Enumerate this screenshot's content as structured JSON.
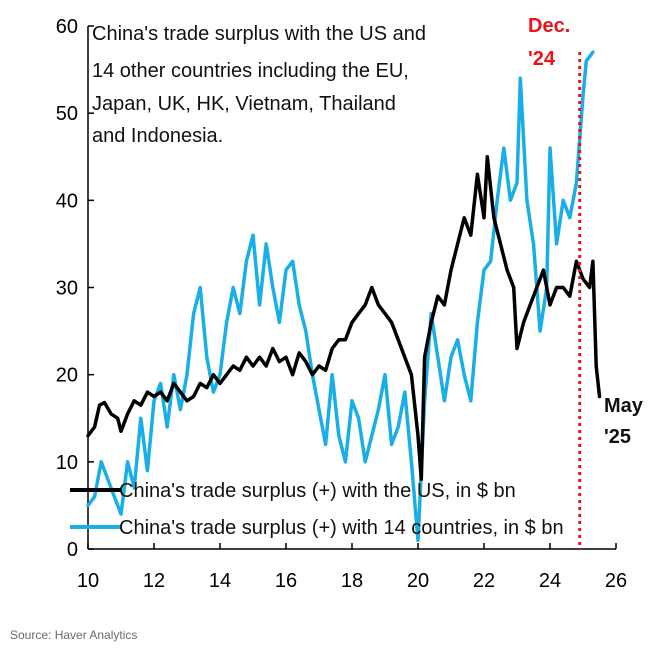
{
  "source": "Source: Haver Analytics",
  "chart_data": {
    "type": "line",
    "title_lines": [
      "China's trade surplus with the US and",
      "14  other countries including the EU,",
      "Japan, UK, HK, Vietnam, Thailand",
      "and Indonesia."
    ],
    "xlim": [
      10,
      26
    ],
    "ylim": [
      0,
      60
    ],
    "x_ticks": [
      10,
      12,
      14,
      16,
      18,
      20,
      22,
      24,
      26
    ],
    "y_ticks": [
      0,
      10,
      20,
      30,
      40,
      50,
      60
    ],
    "grid": false,
    "legend_position": "bottom-left",
    "series": [
      {
        "name": "China's trade surplus (+) with the US, in $ bn",
        "color": "#000000",
        "points": [
          [
            10.0,
            13
          ],
          [
            10.2,
            14
          ],
          [
            10.35,
            16.5
          ],
          [
            10.5,
            16.8
          ],
          [
            10.7,
            15.5
          ],
          [
            10.9,
            15
          ],
          [
            11.0,
            13.5
          ],
          [
            11.2,
            15.5
          ],
          [
            11.4,
            17
          ],
          [
            11.6,
            16.5
          ],
          [
            11.8,
            18
          ],
          [
            12.0,
            17.5
          ],
          [
            12.2,
            18
          ],
          [
            12.4,
            17
          ],
          [
            12.6,
            19
          ],
          [
            12.8,
            18
          ],
          [
            13.0,
            17
          ],
          [
            13.2,
            17.5
          ],
          [
            13.4,
            19
          ],
          [
            13.6,
            18.5
          ],
          [
            13.8,
            20
          ],
          [
            14.0,
            19
          ],
          [
            14.2,
            20
          ],
          [
            14.4,
            21
          ],
          [
            14.6,
            20.5
          ],
          [
            14.8,
            22
          ],
          [
            15.0,
            21
          ],
          [
            15.2,
            22
          ],
          [
            15.4,
            21
          ],
          [
            15.6,
            23
          ],
          [
            15.8,
            21.5
          ],
          [
            16.0,
            22
          ],
          [
            16.2,
            20
          ],
          [
            16.4,
            22.5
          ],
          [
            16.6,
            21.5
          ],
          [
            16.8,
            20
          ],
          [
            17.0,
            21
          ],
          [
            17.2,
            20.5
          ],
          [
            17.4,
            23
          ],
          [
            17.6,
            24
          ],
          [
            17.8,
            24
          ],
          [
            18.0,
            26
          ],
          [
            18.2,
            27
          ],
          [
            18.4,
            28
          ],
          [
            18.6,
            30
          ],
          [
            18.8,
            28
          ],
          [
            19.0,
            27
          ],
          [
            19.2,
            26
          ],
          [
            19.4,
            24
          ],
          [
            19.6,
            22
          ],
          [
            19.8,
            20
          ],
          [
            20.0,
            13
          ],
          [
            20.1,
            8
          ],
          [
            20.2,
            22
          ],
          [
            20.4,
            26
          ],
          [
            20.6,
            29
          ],
          [
            20.8,
            28
          ],
          [
            21.0,
            32
          ],
          [
            21.2,
            35
          ],
          [
            21.4,
            38
          ],
          [
            21.6,
            36
          ],
          [
            21.8,
            43
          ],
          [
            22.0,
            38
          ],
          [
            22.1,
            45
          ],
          [
            22.3,
            38
          ],
          [
            22.5,
            35
          ],
          [
            22.7,
            32
          ],
          [
            22.9,
            30
          ],
          [
            23.0,
            23
          ],
          [
            23.2,
            26
          ],
          [
            23.4,
            28
          ],
          [
            23.6,
            30
          ],
          [
            23.8,
            32
          ],
          [
            24.0,
            28
          ],
          [
            24.2,
            30
          ],
          [
            24.4,
            30
          ],
          [
            24.6,
            29
          ],
          [
            24.8,
            33
          ],
          [
            25.0,
            31
          ],
          [
            25.2,
            30
          ],
          [
            25.3,
            33
          ],
          [
            25.4,
            21
          ],
          [
            25.5,
            17.5
          ]
        ]
      },
      {
        "name": "China's trade surplus (+) with 14 countries, in $ bn",
        "color": "#1aaee6",
        "points": [
          [
            10.0,
            5
          ],
          [
            10.2,
            6
          ],
          [
            10.4,
            10
          ],
          [
            10.6,
            8
          ],
          [
            10.8,
            6
          ],
          [
            11.0,
            4
          ],
          [
            11.2,
            10
          ],
          [
            11.4,
            7
          ],
          [
            11.6,
            15
          ],
          [
            11.8,
            9
          ],
          [
            12.0,
            17
          ],
          [
            12.2,
            19
          ],
          [
            12.4,
            14
          ],
          [
            12.6,
            20
          ],
          [
            12.8,
            16
          ],
          [
            13.0,
            20
          ],
          [
            13.2,
            27
          ],
          [
            13.4,
            30
          ],
          [
            13.6,
            22
          ],
          [
            13.8,
            18
          ],
          [
            14.0,
            20
          ],
          [
            14.2,
            26
          ],
          [
            14.4,
            30
          ],
          [
            14.6,
            27
          ],
          [
            14.8,
            33
          ],
          [
            15.0,
            36
          ],
          [
            15.2,
            28
          ],
          [
            15.4,
            35
          ],
          [
            15.6,
            30
          ],
          [
            15.8,
            26
          ],
          [
            16.0,
            32
          ],
          [
            16.2,
            33
          ],
          [
            16.4,
            28
          ],
          [
            16.6,
            25
          ],
          [
            16.8,
            20
          ],
          [
            17.0,
            16
          ],
          [
            17.2,
            12
          ],
          [
            17.4,
            20
          ],
          [
            17.6,
            13
          ],
          [
            17.8,
            10
          ],
          [
            18.0,
            17
          ],
          [
            18.2,
            15
          ],
          [
            18.4,
            10
          ],
          [
            18.6,
            13
          ],
          [
            18.8,
            16
          ],
          [
            19.0,
            20
          ],
          [
            19.2,
            12
          ],
          [
            19.4,
            14
          ],
          [
            19.6,
            18
          ],
          [
            19.8,
            10
          ],
          [
            20.0,
            1
          ],
          [
            20.2,
            17
          ],
          [
            20.4,
            27
          ],
          [
            20.6,
            22
          ],
          [
            20.8,
            17
          ],
          [
            21.0,
            22
          ],
          [
            21.2,
            24
          ],
          [
            21.4,
            20
          ],
          [
            21.6,
            17
          ],
          [
            21.8,
            26
          ],
          [
            22.0,
            32
          ],
          [
            22.2,
            33
          ],
          [
            22.4,
            40
          ],
          [
            22.6,
            46
          ],
          [
            22.8,
            40
          ],
          [
            23.0,
            42
          ],
          [
            23.1,
            54
          ],
          [
            23.3,
            40
          ],
          [
            23.5,
            35
          ],
          [
            23.7,
            25
          ],
          [
            23.9,
            30
          ],
          [
            24.0,
            46
          ],
          [
            24.2,
            35
          ],
          [
            24.4,
            40
          ],
          [
            24.6,
            38
          ],
          [
            24.8,
            42
          ],
          [
            25.0,
            52
          ],
          [
            25.1,
            56
          ],
          [
            25.3,
            57
          ]
        ]
      }
    ],
    "reference_line": {
      "x": 24.9,
      "color": "#e8161b",
      "style": "dotted"
    },
    "annotations": [
      {
        "text": "Dec.",
        "color": "#e8161b"
      },
      {
        "text": "'24",
        "color": "#e8161b"
      },
      {
        "text": "May",
        "color": "#111111"
      },
      {
        "text": "'25",
        "color": "#111111"
      }
    ]
  }
}
